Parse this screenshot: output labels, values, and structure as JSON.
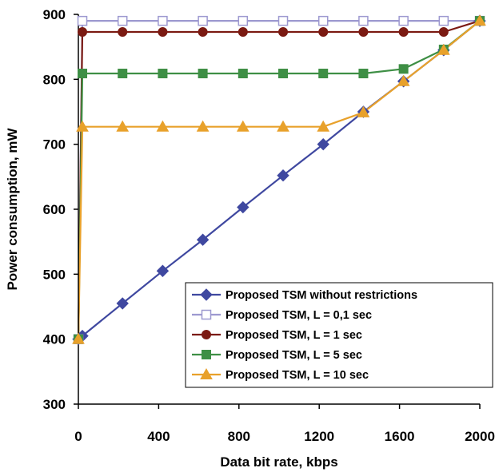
{
  "chart_data": {
    "type": "line",
    "title": "",
    "xlabel": "Data bit rate, kbps",
    "ylabel": "Power consumption, mW",
    "xlim": [
      0,
      2000
    ],
    "ylim": [
      300,
      900
    ],
    "xticks": [
      "0",
      "400",
      "800",
      "1200",
      "1600",
      "2000"
    ],
    "yticks": [
      "300",
      "400",
      "500",
      "600",
      "700",
      "800",
      "900"
    ],
    "grid": false,
    "legend_position": "bottom-right",
    "series": [
      {
        "name": "Proposed TSM without restrictions",
        "color": "#3f48a0",
        "marker": "diamond",
        "x": [
          0,
          20,
          220,
          420,
          620,
          820,
          1020,
          1220,
          1420,
          1620,
          1820,
          2000
        ],
        "y": [
          400,
          405,
          455,
          505,
          553,
          603,
          652,
          700,
          750,
          797,
          845,
          890
        ]
      },
      {
        "name": "Proposed TSM, L = 0,1 sec",
        "color": "#9d99d0",
        "marker": "square-open",
        "x": [
          0,
          20,
          220,
          420,
          620,
          820,
          1020,
          1220,
          1420,
          1620,
          1820,
          2000
        ],
        "y": [
          400,
          890,
          890,
          890,
          890,
          890,
          890,
          890,
          890,
          890,
          890,
          890
        ]
      },
      {
        "name": "Proposed TSM, L = 1 sec",
        "color": "#7b1a12",
        "marker": "circle",
        "x": [
          0,
          20,
          220,
          420,
          620,
          820,
          1020,
          1220,
          1420,
          1620,
          1820,
          2000
        ],
        "y": [
          400,
          873,
          873,
          873,
          873,
          873,
          873,
          873,
          873,
          873,
          873,
          890
        ]
      },
      {
        "name": "Proposed TSM, L = 5 sec",
        "color": "#3e8f45",
        "marker": "square",
        "x": [
          0,
          20,
          220,
          420,
          620,
          820,
          1020,
          1220,
          1420,
          1620,
          1820,
          2000
        ],
        "y": [
          400,
          809,
          809,
          809,
          809,
          809,
          809,
          809,
          809,
          816,
          846,
          890
        ]
      },
      {
        "name": "Proposed TSM, L = 10 sec",
        "color": "#e8a12b",
        "marker": "triangle",
        "x": [
          0,
          20,
          220,
          420,
          620,
          820,
          1020,
          1220,
          1420,
          1620,
          1820,
          2000
        ],
        "y": [
          400,
          727,
          727,
          727,
          727,
          727,
          727,
          727,
          749,
          797,
          845,
          890
        ]
      }
    ]
  }
}
